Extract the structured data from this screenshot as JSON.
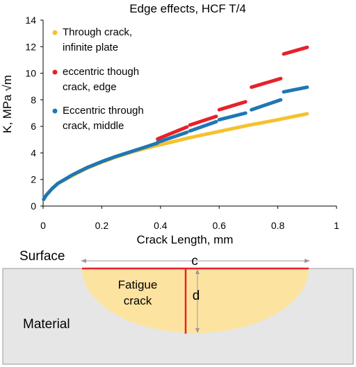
{
  "chart_data": {
    "type": "line",
    "title": "Edge effects, HCF T/4",
    "xlabel": "Crack Length, mm",
    "ylabel": "K, MPa √m",
    "xlim": [
      0,
      1
    ],
    "ylim": [
      0,
      14
    ],
    "xticks": [
      0,
      0.2,
      0.4,
      0.6,
      0.8,
      1
    ],
    "yticks": [
      0,
      2,
      4,
      6,
      8,
      10,
      12,
      14
    ],
    "xtick_labels": [
      "0",
      "0.2",
      "0.4",
      "0.6",
      "0.8",
      "1"
    ],
    "ytick_labels": [
      "0",
      "2",
      "4",
      "6",
      "8",
      "10",
      "12",
      "14"
    ],
    "grid": false,
    "legend_position": "top-left",
    "series": [
      {
        "name": "Through crack, infinite plate",
        "color": "#F5C12E",
        "segments": [
          [
            [
              0.002,
              0.5
            ],
            [
              0.01,
              0.8
            ],
            [
              0.03,
              1.3
            ],
            [
              0.05,
              1.7
            ],
            [
              0.1,
              2.3
            ],
            [
              0.15,
              2.85
            ],
            [
              0.2,
              3.3
            ],
            [
              0.25,
              3.7
            ],
            [
              0.3,
              4.05
            ],
            [
              0.35,
              4.35
            ],
            [
              0.4,
              4.62
            ],
            [
              0.5,
              5.15
            ],
            [
              0.6,
              5.62
            ],
            [
              0.7,
              6.08
            ],
            [
              0.8,
              6.5
            ],
            [
              0.9,
              6.95
            ]
          ]
        ]
      },
      {
        "name": "eccentric though crack, edge",
        "color": "#E8202A",
        "segments": [
          [
            [
              0.39,
              5.05
            ],
            [
              0.49,
              5.95
            ]
          ],
          [
            [
              0.5,
              6.1
            ],
            [
              0.59,
              6.75
            ]
          ],
          [
            [
              0.6,
              7.25
            ],
            [
              0.69,
              7.85
            ]
          ],
          [
            [
              0.71,
              8.95
            ],
            [
              0.81,
              9.6
            ]
          ],
          [
            [
              0.82,
              11.45
            ],
            [
              0.9,
              11.95
            ]
          ]
        ]
      },
      {
        "name": "Eccentric through crack, middle",
        "color": "#1F77B4",
        "segments": [
          [
            [
              0.002,
              0.5
            ],
            [
              0.01,
              0.8
            ],
            [
              0.03,
              1.3
            ],
            [
              0.05,
              1.7
            ],
            [
              0.1,
              2.35
            ],
            [
              0.15,
              2.9
            ],
            [
              0.2,
              3.35
            ],
            [
              0.25,
              3.75
            ],
            [
              0.3,
              4.1
            ],
            [
              0.35,
              4.45
            ],
            [
              0.39,
              4.75
            ]
          ],
          [
            [
              0.39,
              4.8
            ],
            [
              0.49,
              5.55
            ]
          ],
          [
            [
              0.5,
              5.65
            ],
            [
              0.59,
              6.35
            ]
          ],
          [
            [
              0.6,
              6.5
            ],
            [
              0.69,
              7.0
            ]
          ],
          [
            [
              0.71,
              7.25
            ],
            [
              0.81,
              8.0
            ]
          ],
          [
            [
              0.82,
              8.6
            ],
            [
              0.9,
              8.95
            ]
          ]
        ]
      }
    ],
    "legend": [
      {
        "lines": [
          "Through crack,",
          "infinite plate"
        ],
        "color": "#F5C12E"
      },
      {
        "lines": [
          "eccentric though",
          "crack, edge"
        ],
        "color": "#E8202A"
      },
      {
        "lines": [
          "Eccentric through",
          "crack, middle"
        ],
        "color": "#1F77B4"
      }
    ]
  },
  "diagram": {
    "surface_label": "Surface",
    "c_label": "c",
    "crack_label_line1": "Fatigue",
    "crack_label_line2": "crack",
    "d_label": "d",
    "material_label": "Material",
    "colors": {
      "material": "#E6E6E6",
      "crack": "#FDE3A0",
      "crack_edge": "#E8202A",
      "arrow": "#999999"
    }
  }
}
